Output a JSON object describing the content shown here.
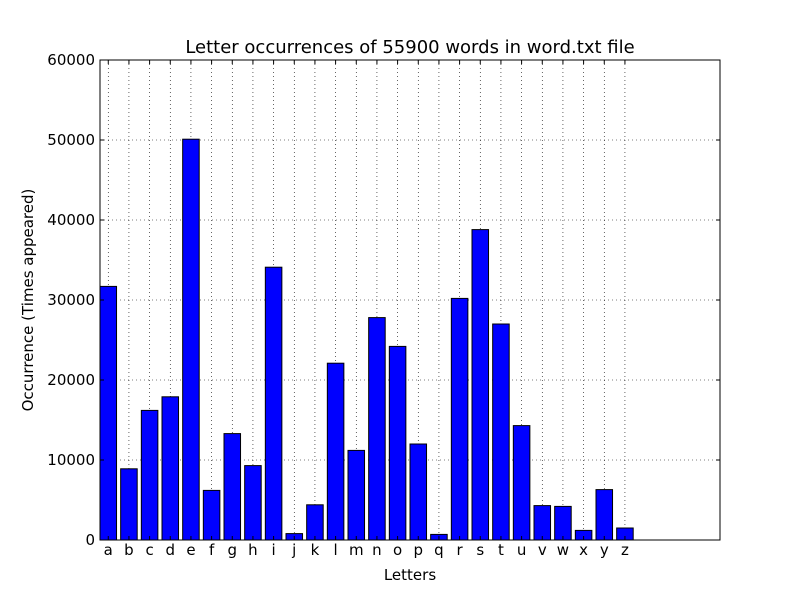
{
  "chart_data": {
    "type": "bar",
    "title": "Letter occurrences of 55900 words in word.txt file",
    "xlabel": "Letters",
    "ylabel": "Occurrence (Times appeared)",
    "categories": [
      "a",
      "b",
      "c",
      "d",
      "e",
      "f",
      "g",
      "h",
      "i",
      "j",
      "k",
      "l",
      "m",
      "n",
      "o",
      "p",
      "q",
      "r",
      "s",
      "t",
      "u",
      "v",
      "w",
      "x",
      "y",
      "z"
    ],
    "values": [
      31700,
      8900,
      16200,
      17900,
      50100,
      6200,
      13300,
      9300,
      34100,
      800,
      4400,
      22100,
      11200,
      27800,
      24200,
      12000,
      700,
      30200,
      38800,
      27000,
      14300,
      4300,
      4200,
      1200,
      6300,
      1500
    ],
    "xlim": [
      0,
      30
    ],
    "ylim": [
      0,
      60000
    ],
    "yticks": [
      "0",
      "10000",
      "20000",
      "30000",
      "40000",
      "50000",
      "60000"
    ],
    "grid": true,
    "bar_color": "#0000ff",
    "bar_edge_color": "#000000"
  }
}
